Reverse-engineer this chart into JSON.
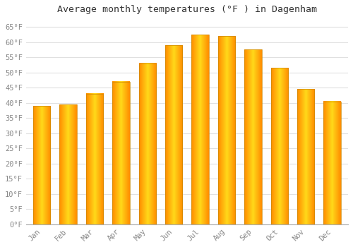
{
  "months": [
    "Jan",
    "Feb",
    "Mar",
    "Apr",
    "May",
    "Jun",
    "Jul",
    "Aug",
    "Sep",
    "Oct",
    "Nov",
    "Dec"
  ],
  "values": [
    39,
    39.5,
    43,
    47,
    53,
    59,
    62.5,
    62,
    57.5,
    51.5,
    44.5,
    40.5
  ],
  "bar_color_center": "#FFD700",
  "bar_color_edge": "#FFA500",
  "title": "Average monthly temperatures (°F ) in Dagenham",
  "title_fontsize": 9.5,
  "ylabel_ticks": [
    "0°F",
    "5°F",
    "10°F",
    "15°F",
    "20°F",
    "25°F",
    "30°F",
    "35°F",
    "40°F",
    "45°F",
    "50°F",
    "55°F",
    "60°F",
    "65°F"
  ],
  "ytick_values": [
    0,
    5,
    10,
    15,
    20,
    25,
    30,
    35,
    40,
    45,
    50,
    55,
    60,
    65
  ],
  "ylim": [
    0,
    68
  ],
  "grid_color": "#e0e0e0",
  "bg_color": "#ffffff",
  "tick_label_color": "#888888",
  "tick_label_fontsize": 7.5,
  "title_font_family": "monospace",
  "bar_width": 0.65
}
